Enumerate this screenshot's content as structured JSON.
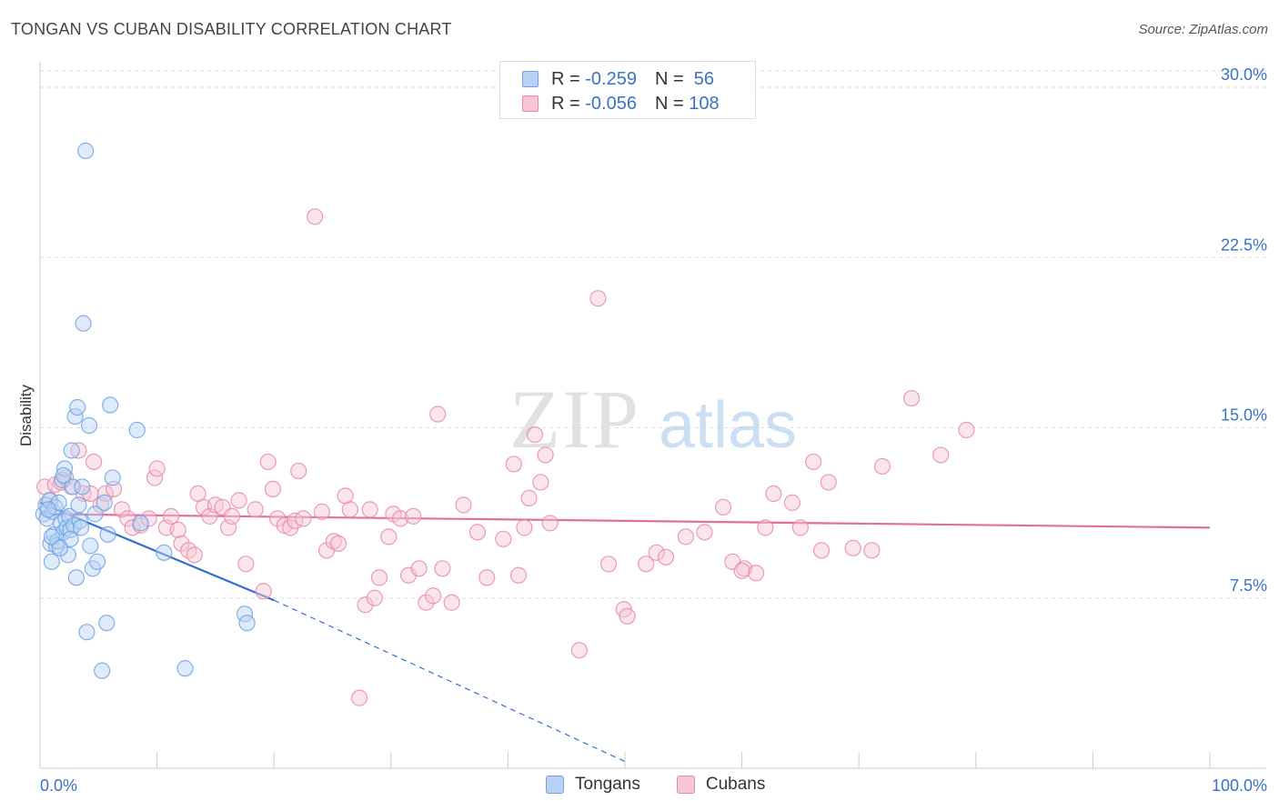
{
  "header": {
    "title": "TONGAN VS CUBAN DISABILITY CORRELATION CHART",
    "source": "Source: ZipAtlas.com"
  },
  "watermark": {
    "zip": "ZIP",
    "atlas": "atlas"
  },
  "legend": {
    "rows": [
      {
        "r_label": "R = ",
        "r_value": "-0.259",
        "n_label": "N = ",
        "n_value": " 56",
        "color": "#6fa3e3",
        "fill": "#b9d2f3"
      },
      {
        "r_label": "R = ",
        "r_value": "-0.056",
        "n_label": "N = ",
        "n_value": "108",
        "color": "#e889a8",
        "fill": "#f6c6d5"
      }
    ]
  },
  "bottom_legend": [
    {
      "label": "Tongans",
      "color": "#6fa3e3",
      "fill": "#b9d2f3"
    },
    {
      "label": "Cubans",
      "color": "#e889a8",
      "fill": "#f6c6d5"
    }
  ],
  "chart_data": {
    "type": "scatter",
    "ylabel": "Disability",
    "xlim": [
      0,
      100
    ],
    "ylim": [
      0,
      30.0
    ],
    "x_tick_labels": [
      "0.0%",
      "100.0%"
    ],
    "y_ticks": [
      7.5,
      15.0,
      22.5,
      30.0
    ],
    "y_tick_labels": [
      "7.5%",
      "15.0%",
      "22.5%",
      "30.0%"
    ],
    "grid": true,
    "series": [
      {
        "name": "Tongans",
        "color": "#6fa3e3",
        "fill": "#b9d2f3",
        "trend": {
          "x": [
            0,
            20
          ],
          "y": [
            11.7,
            7.4
          ],
          "dashed_to": [
            50,
            0.3
          ],
          "color": "#2f6fd1"
        },
        "points": [
          [
            0.3,
            11.2
          ],
          [
            0.5,
            11.6
          ],
          [
            0.6,
            11.0
          ],
          [
            0.8,
            11.8
          ],
          [
            0.9,
            9.9
          ],
          [
            1.0,
            9.1
          ],
          [
            1.1,
            11.3
          ],
          [
            1.2,
            10.3
          ],
          [
            1.3,
            11.5
          ],
          [
            1.4,
            9.8
          ],
          [
            1.5,
            10.0
          ],
          [
            1.6,
            11.7
          ],
          [
            1.8,
            10.8
          ],
          [
            1.9,
            12.7
          ],
          [
            2.0,
            10.4
          ],
          [
            2.1,
            13.2
          ],
          [
            2.2,
            11.0
          ],
          [
            2.3,
            10.6
          ],
          [
            2.4,
            9.4
          ],
          [
            2.5,
            11.1
          ],
          [
            2.6,
            10.5
          ],
          [
            2.7,
            14.0
          ],
          [
            2.8,
            12.4
          ],
          [
            2.9,
            10.7
          ],
          [
            3.0,
            15.5
          ],
          [
            3.1,
            8.4
          ],
          [
            3.2,
            15.9
          ],
          [
            3.3,
            11.6
          ],
          [
            3.4,
            10.9
          ],
          [
            3.5,
            10.6
          ],
          [
            3.6,
            12.4
          ],
          [
            3.7,
            19.6
          ],
          [
            3.9,
            27.2
          ],
          [
            4.0,
            6.0
          ],
          [
            4.2,
            15.1
          ],
          [
            4.3,
            9.8
          ],
          [
            4.5,
            8.8
          ],
          [
            4.7,
            11.2
          ],
          [
            4.9,
            9.1
          ],
          [
            5.3,
            4.3
          ],
          [
            5.5,
            11.7
          ],
          [
            5.7,
            6.4
          ],
          [
            5.8,
            10.3
          ],
          [
            6.0,
            16.0
          ],
          [
            6.2,
            12.8
          ],
          [
            8.3,
            14.9
          ],
          [
            8.6,
            10.8
          ],
          [
            10.6,
            9.5
          ],
          [
            12.4,
            4.4
          ],
          [
            17.5,
            6.8
          ],
          [
            17.7,
            6.4
          ],
          [
            2.0,
            12.9
          ],
          [
            1.0,
            10.2
          ],
          [
            0.7,
            11.4
          ],
          [
            2.6,
            10.1
          ],
          [
            1.7,
            9.7
          ]
        ]
      },
      {
        "name": "Cubans",
        "color": "#e889a8",
        "fill": "#f6c6d5",
        "trend": {
          "x": [
            0,
            100
          ],
          "y": [
            11.2,
            10.6
          ],
          "color": "#e0709a"
        },
        "points": [
          [
            0.4,
            12.4
          ],
          [
            0.9,
            11.8
          ],
          [
            1.3,
            12.5
          ],
          [
            1.8,
            12.6
          ],
          [
            2.2,
            12.8
          ],
          [
            2.7,
            12.4
          ],
          [
            3.3,
            14.0
          ],
          [
            3.7,
            12.1
          ],
          [
            4.3,
            12.1
          ],
          [
            4.6,
            13.5
          ],
          [
            5.2,
            11.6
          ],
          [
            5.6,
            12.1
          ],
          [
            6.3,
            12.3
          ],
          [
            7.0,
            11.4
          ],
          [
            7.5,
            11.0
          ],
          [
            7.9,
            10.6
          ],
          [
            8.6,
            10.7
          ],
          [
            9.3,
            11.0
          ],
          [
            9.8,
            12.8
          ],
          [
            10.0,
            13.2
          ],
          [
            10.8,
            10.6
          ],
          [
            11.2,
            11.1
          ],
          [
            11.8,
            10.5
          ],
          [
            12.1,
            9.9
          ],
          [
            12.7,
            9.6
          ],
          [
            13.2,
            9.4
          ],
          [
            13.5,
            12.1
          ],
          [
            14.0,
            11.5
          ],
          [
            14.5,
            11.1
          ],
          [
            15.0,
            11.6
          ],
          [
            15.6,
            11.5
          ],
          [
            16.1,
            10.6
          ],
          [
            16.4,
            11.1
          ],
          [
            17.0,
            11.8
          ],
          [
            17.6,
            9.0
          ],
          [
            18.4,
            11.4
          ],
          [
            19.1,
            7.8
          ],
          [
            19.5,
            13.5
          ],
          [
            19.9,
            12.3
          ],
          [
            20.3,
            11.0
          ],
          [
            20.9,
            10.7
          ],
          [
            21.4,
            10.6
          ],
          [
            21.8,
            10.9
          ],
          [
            22.1,
            13.1
          ],
          [
            22.5,
            11.0
          ],
          [
            23.5,
            24.3
          ],
          [
            24.1,
            11.3
          ],
          [
            24.5,
            9.6
          ],
          [
            25.1,
            10.0
          ],
          [
            25.5,
            9.9
          ],
          [
            26.1,
            12.0
          ],
          [
            26.5,
            11.4
          ],
          [
            27.3,
            3.1
          ],
          [
            27.8,
            7.2
          ],
          [
            28.2,
            11.4
          ],
          [
            28.6,
            7.5
          ],
          [
            29.0,
            8.4
          ],
          [
            29.8,
            10.2
          ],
          [
            30.2,
            11.2
          ],
          [
            30.8,
            11.0
          ],
          [
            31.5,
            8.5
          ],
          [
            31.9,
            11.1
          ],
          [
            32.4,
            8.8
          ],
          [
            33.0,
            7.3
          ],
          [
            33.6,
            7.6
          ],
          [
            34.0,
            15.6
          ],
          [
            34.4,
            8.8
          ],
          [
            35.2,
            7.3
          ],
          [
            36.2,
            11.6
          ],
          [
            37.4,
            10.4
          ],
          [
            38.2,
            8.4
          ],
          [
            39.6,
            10.1
          ],
          [
            40.5,
            13.4
          ],
          [
            40.9,
            8.5
          ],
          [
            41.4,
            10.6
          ],
          [
            41.8,
            11.9
          ],
          [
            42.3,
            14.7
          ],
          [
            42.8,
            12.6
          ],
          [
            43.2,
            13.8
          ],
          [
            43.6,
            10.8
          ],
          [
            46.1,
            5.2
          ],
          [
            47.7,
            20.7
          ],
          [
            48.6,
            9.0
          ],
          [
            49.9,
            7.0
          ],
          [
            50.2,
            6.7
          ],
          [
            51.8,
            9.0
          ],
          [
            52.7,
            9.5
          ],
          [
            53.5,
            9.3
          ],
          [
            55.2,
            10.2
          ],
          [
            56.8,
            10.4
          ],
          [
            58.4,
            11.5
          ],
          [
            59.2,
            9.1
          ],
          [
            60.2,
            8.8
          ],
          [
            61.2,
            8.6
          ],
          [
            62.0,
            10.6
          ],
          [
            62.7,
            12.1
          ],
          [
            64.3,
            11.7
          ],
          [
            65.0,
            10.6
          ],
          [
            66.1,
            13.5
          ],
          [
            66.8,
            9.6
          ],
          [
            67.4,
            12.6
          ],
          [
            69.5,
            9.7
          ],
          [
            72.0,
            13.3
          ],
          [
            74.5,
            16.3
          ],
          [
            77.0,
            13.8
          ],
          [
            79.2,
            14.9
          ],
          [
            71.1,
            9.6
          ],
          [
            60.0,
            8.7
          ]
        ]
      }
    ]
  }
}
